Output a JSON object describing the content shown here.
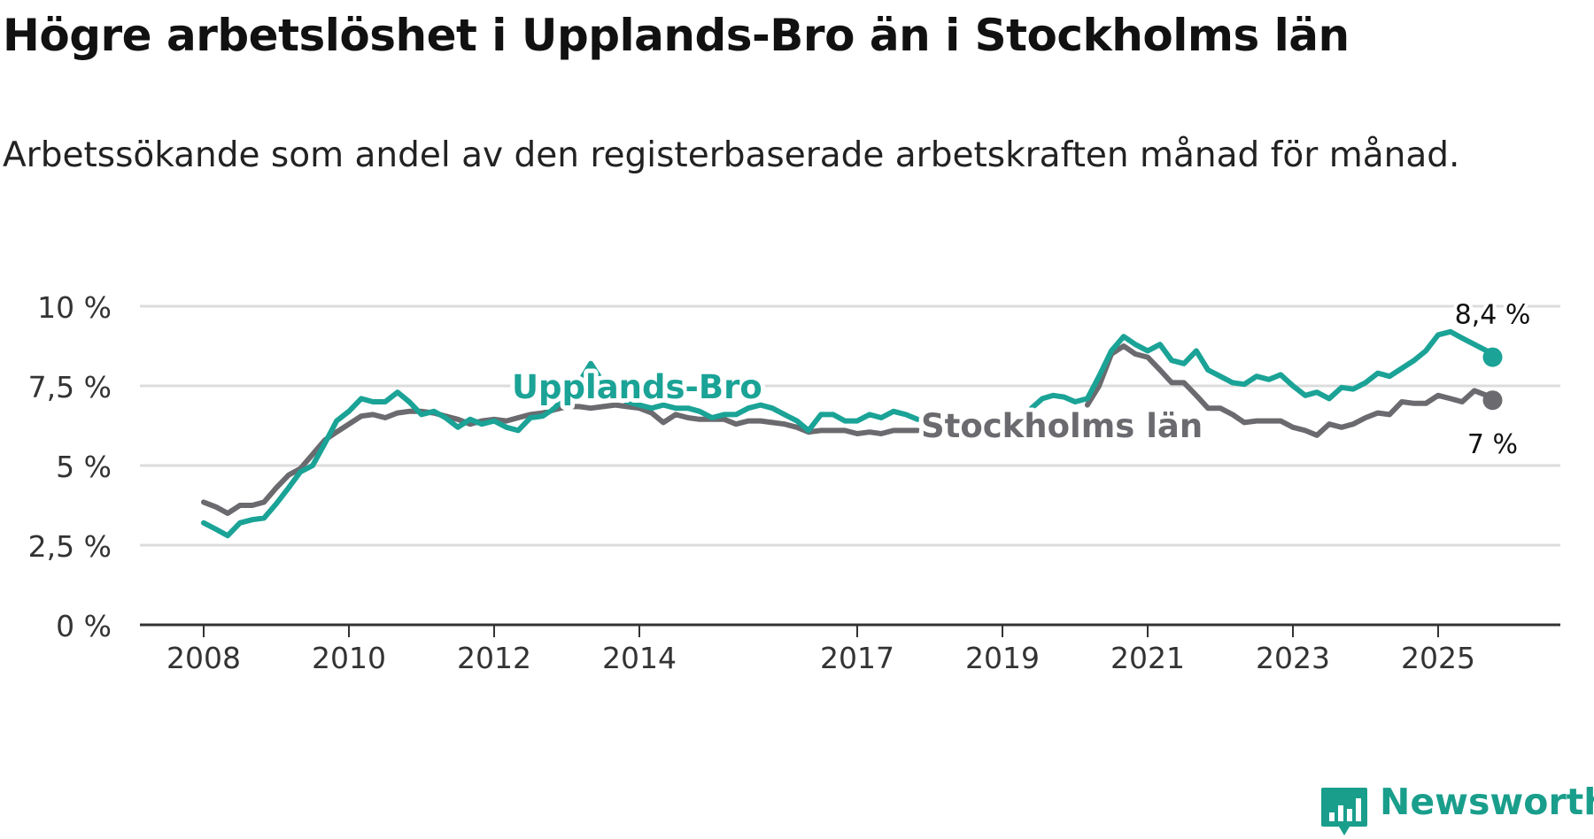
{
  "title": "Högre arbetslöshet i Upplands-Bro än i Stockholms län",
  "subtitle": "Arbetssökande som andel av den registerbaserade arbetskraften månad för månad.",
  "brand": {
    "name": "Newsworthy",
    "color": "#1a9e8c",
    "icon": "chart-bubble-icon"
  },
  "chart_data": {
    "type": "line",
    "title": "Högre arbetslöshet i Upplands-Bro än i Stockholms län",
    "ylabel": "Arbetssökande som andel av den registerbaserade arbetskraften",
    "xlabel": "",
    "ylim": [
      0,
      10
    ],
    "y_ticks": [
      0,
      2.5,
      5,
      7.5,
      10
    ],
    "y_tick_labels": [
      "0 %",
      "2,5 %",
      "5 %",
      "7,5 %",
      "10 %"
    ],
    "x_ticks": [
      2008,
      2010,
      2012,
      2014,
      2017,
      2019,
      2021,
      2023,
      2025
    ],
    "x_tick_labels": [
      "2008",
      "2010",
      "2012",
      "2014",
      "2017",
      "2019",
      "2021",
      "2023",
      "2025"
    ],
    "grid": true,
    "series": [
      {
        "name": "Stockholms län",
        "label": "Stockholms län",
        "color": "#6b6a6f",
        "end_label": "7 %",
        "points": [
          [
            2008.0,
            3.85
          ],
          [
            2008.17,
            3.7
          ],
          [
            2008.33,
            3.5
          ],
          [
            2008.5,
            3.75
          ],
          [
            2008.67,
            3.75
          ],
          [
            2008.83,
            3.85
          ],
          [
            2009.0,
            4.3
          ],
          [
            2009.17,
            4.7
          ],
          [
            2009.33,
            4.9
          ],
          [
            2009.5,
            5.35
          ],
          [
            2009.67,
            5.8
          ],
          [
            2009.83,
            6.05
          ],
          [
            2010.0,
            6.3
          ],
          [
            2010.17,
            6.55
          ],
          [
            2010.33,
            6.6
          ],
          [
            2010.5,
            6.5
          ],
          [
            2010.67,
            6.65
          ],
          [
            2010.83,
            6.7
          ],
          [
            2011.0,
            6.7
          ],
          [
            2011.17,
            6.65
          ],
          [
            2011.33,
            6.55
          ],
          [
            2011.5,
            6.45
          ],
          [
            2011.67,
            6.3
          ],
          [
            2011.83,
            6.4
          ],
          [
            2012.0,
            6.45
          ],
          [
            2012.17,
            6.4
          ],
          [
            2012.33,
            6.5
          ],
          [
            2012.5,
            6.6
          ],
          [
            2012.67,
            6.65
          ],
          [
            2012.83,
            6.75
          ],
          [
            2013.0,
            6.85
          ],
          [
            2013.17,
            6.85
          ],
          [
            2013.33,
            6.8
          ],
          [
            2013.5,
            6.85
          ],
          [
            2013.67,
            6.9
          ],
          [
            2013.83,
            6.85
          ],
          [
            2014.0,
            6.8
          ],
          [
            2014.17,
            6.65
          ],
          [
            2014.33,
            6.35
          ],
          [
            2014.5,
            6.6
          ],
          [
            2014.67,
            6.5
          ],
          [
            2014.83,
            6.45
          ],
          [
            2015.0,
            6.45
          ],
          [
            2015.17,
            6.45
          ],
          [
            2015.33,
            6.3
          ],
          [
            2015.5,
            6.4
          ],
          [
            2015.67,
            6.4
          ],
          [
            2015.83,
            6.35
          ],
          [
            2016.0,
            6.3
          ],
          [
            2016.17,
            6.2
          ],
          [
            2016.33,
            6.05
          ],
          [
            2016.5,
            6.1
          ],
          [
            2016.67,
            6.1
          ],
          [
            2016.83,
            6.1
          ],
          [
            2017.0,
            6.0
          ],
          [
            2017.17,
            6.05
          ],
          [
            2017.33,
            6.0
          ],
          [
            2017.5,
            6.1
          ],
          [
            2017.67,
            6.1
          ],
          [
            2017.83,
            6.1
          ],
          null,
          [
            2020.17,
            6.9
          ],
          [
            2020.33,
            7.5
          ],
          [
            2020.5,
            8.5
          ],
          [
            2020.67,
            8.75
          ],
          [
            2020.83,
            8.5
          ],
          [
            2021.0,
            8.4
          ],
          [
            2021.17,
            8.0
          ],
          [
            2021.33,
            7.6
          ],
          [
            2021.5,
            7.6
          ],
          [
            2021.67,
            7.2
          ],
          [
            2021.83,
            6.8
          ],
          [
            2022.0,
            6.8
          ],
          [
            2022.17,
            6.6
          ],
          [
            2022.33,
            6.35
          ],
          [
            2022.5,
            6.4
          ],
          [
            2022.67,
            6.4
          ],
          [
            2022.83,
            6.4
          ],
          [
            2023.0,
            6.2
          ],
          [
            2023.17,
            6.1
          ],
          [
            2023.33,
            5.95
          ],
          [
            2023.5,
            6.3
          ],
          [
            2023.67,
            6.2
          ],
          [
            2023.83,
            6.3
          ],
          [
            2024.0,
            6.5
          ],
          [
            2024.17,
            6.65
          ],
          [
            2024.33,
            6.6
          ],
          [
            2024.5,
            7.0
          ],
          [
            2024.67,
            6.95
          ],
          [
            2024.83,
            6.95
          ],
          [
            2025.0,
            7.2
          ],
          [
            2025.17,
            7.1
          ],
          [
            2025.33,
            7.0
          ],
          [
            2025.5,
            7.35
          ],
          [
            2025.67,
            7.2
          ],
          [
            2025.75,
            7.05
          ]
        ]
      },
      {
        "name": "Upplands-Bro",
        "label": "Upplands-Bro",
        "color": "#1aa396",
        "end_label": "8,4 %",
        "points": [
          [
            2008.0,
            3.2
          ],
          [
            2008.17,
            3.0
          ],
          [
            2008.33,
            2.8
          ],
          [
            2008.5,
            3.2
          ],
          [
            2008.67,
            3.3
          ],
          [
            2008.83,
            3.35
          ],
          [
            2009.0,
            3.8
          ],
          [
            2009.17,
            4.3
          ],
          [
            2009.33,
            4.8
          ],
          [
            2009.5,
            5.0
          ],
          [
            2009.67,
            5.7
          ],
          [
            2009.83,
            6.4
          ],
          [
            2010.0,
            6.7
          ],
          [
            2010.17,
            7.1
          ],
          [
            2010.33,
            7.0
          ],
          [
            2010.5,
            7.0
          ],
          [
            2010.67,
            7.3
          ],
          [
            2010.83,
            7.0
          ],
          [
            2011.0,
            6.6
          ],
          [
            2011.17,
            6.7
          ],
          [
            2011.33,
            6.5
          ],
          [
            2011.5,
            6.2
          ],
          [
            2011.67,
            6.45
          ],
          [
            2011.83,
            6.3
          ],
          [
            2012.0,
            6.4
          ],
          [
            2012.17,
            6.2
          ],
          [
            2012.33,
            6.1
          ],
          [
            2012.5,
            6.5
          ],
          [
            2012.67,
            6.55
          ],
          [
            2012.83,
            6.8
          ],
          [
            2013.0,
            7.2
          ],
          [
            2013.17,
            7.6
          ],
          [
            2013.33,
            8.2
          ],
          [
            2013.5,
            7.6
          ],
          [
            2013.67,
            7.2
          ],
          [
            2013.83,
            7.0
          ],
          [
            2014.0,
            6.9
          ],
          [
            2014.17,
            6.8
          ],
          [
            2014.33,
            6.9
          ],
          [
            2014.5,
            6.8
          ],
          [
            2014.67,
            6.8
          ],
          [
            2014.83,
            6.7
          ],
          [
            2015.0,
            6.5
          ],
          [
            2015.17,
            6.6
          ],
          [
            2015.33,
            6.6
          ],
          [
            2015.5,
            6.8
          ],
          [
            2015.67,
            6.9
          ],
          [
            2015.83,
            6.8
          ],
          [
            2016.0,
            6.6
          ],
          [
            2016.17,
            6.4
          ],
          [
            2016.33,
            6.1
          ],
          [
            2016.5,
            6.6
          ],
          [
            2016.67,
            6.6
          ],
          [
            2016.83,
            6.4
          ],
          [
            2017.0,
            6.4
          ],
          [
            2017.17,
            6.6
          ],
          [
            2017.33,
            6.5
          ],
          [
            2017.5,
            6.7
          ],
          [
            2017.67,
            6.6
          ],
          [
            2017.83,
            6.45
          ],
          null,
          [
            2019.4,
            6.8
          ],
          [
            2019.55,
            7.1
          ],
          [
            2019.7,
            7.2
          ],
          [
            2019.85,
            7.15
          ],
          [
            2020.0,
            7.0
          ],
          [
            2020.17,
            7.1
          ],
          [
            2020.33,
            7.8
          ],
          [
            2020.5,
            8.6
          ],
          [
            2020.67,
            9.05
          ],
          [
            2020.83,
            8.8
          ],
          [
            2021.0,
            8.6
          ],
          [
            2021.17,
            8.8
          ],
          [
            2021.33,
            8.3
          ],
          [
            2021.5,
            8.2
          ],
          [
            2021.67,
            8.6
          ],
          [
            2021.83,
            8.0
          ],
          [
            2022.0,
            7.8
          ],
          [
            2022.17,
            7.6
          ],
          [
            2022.33,
            7.55
          ],
          [
            2022.5,
            7.8
          ],
          [
            2022.67,
            7.7
          ],
          [
            2022.83,
            7.85
          ],
          [
            2023.0,
            7.5
          ],
          [
            2023.17,
            7.2
          ],
          [
            2023.33,
            7.3
          ],
          [
            2023.5,
            7.1
          ],
          [
            2023.67,
            7.45
          ],
          [
            2023.83,
            7.4
          ],
          [
            2024.0,
            7.6
          ],
          [
            2024.17,
            7.9
          ],
          [
            2024.33,
            7.8
          ],
          [
            2024.5,
            8.05
          ],
          [
            2024.67,
            8.3
          ],
          [
            2024.83,
            8.6
          ],
          [
            2025.0,
            9.1
          ],
          [
            2025.17,
            9.2
          ],
          [
            2025.33,
            9.0
          ],
          [
            2025.5,
            8.8
          ],
          [
            2025.67,
            8.6
          ],
          [
            2025.75,
            8.4
          ]
        ]
      }
    ]
  }
}
